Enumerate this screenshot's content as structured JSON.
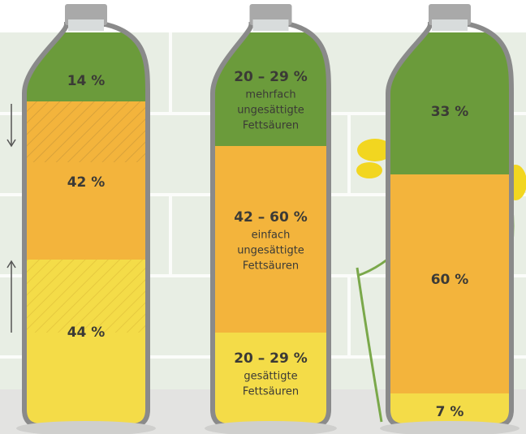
{
  "bottles": [
    {
      "segments": [
        {
          "value": "14 %"
        },
        {
          "value": "42 %"
        },
        {
          "value": "44 %"
        }
      ]
    },
    {
      "segments": [
        {
          "value": "20 – 29 %",
          "lines": [
            "mehrfach",
            "ungesättigte",
            "Fettsäuren"
          ]
        },
        {
          "value": "42 – 60 %",
          "lines": [
            "einfach",
            "ungesättigte",
            "Fettsäuren"
          ]
        },
        {
          "value": "20 – 29 %",
          "lines": [
            "gesättigte",
            "Fettsäuren"
          ]
        }
      ]
    },
    {
      "segments": [
        {
          "value": "33 %"
        },
        {
          "value": "60 %"
        },
        {
          "value": "7 %"
        }
      ]
    }
  ]
}
